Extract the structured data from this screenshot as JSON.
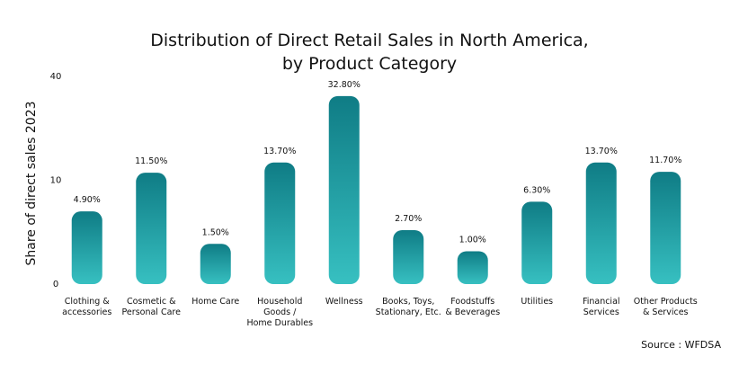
{
  "chart_data": {
    "type": "bar",
    "title": "Distribution of Direct Retail Sales in North America,\nby Product Category",
    "ylabel": "Share of direct sales 2023",
    "source": "Source : WFDSA",
    "categories": [
      "Clothing &\naccessories",
      "Cosmetic &\nPersonal Care",
      "Home Care",
      "Household\nGoods /\nHome Durables",
      "Wellness",
      "Books, Toys,\nStationary, Etc.",
      "Foodstuffs\n& Beverages",
      "Utilities",
      "Financial\nServices",
      "Other Products\n& Services"
    ],
    "values": [
      4.9,
      11.5,
      1.5,
      13.7,
      32.8,
      2.7,
      1.0,
      6.3,
      13.7,
      11.7
    ],
    "value_labels": [
      "4.90%",
      "11.50%",
      "1.50%",
      "13.70%",
      "32.80%",
      "2.70%",
      "1.00%",
      "6.30%",
      "13.70%",
      "11.70%"
    ],
    "ylim": [
      0,
      40
    ],
    "yticks": [
      0,
      10,
      40
    ],
    "scale": "sqrt",
    "grid": false,
    "color": "#1f9fa4"
  }
}
